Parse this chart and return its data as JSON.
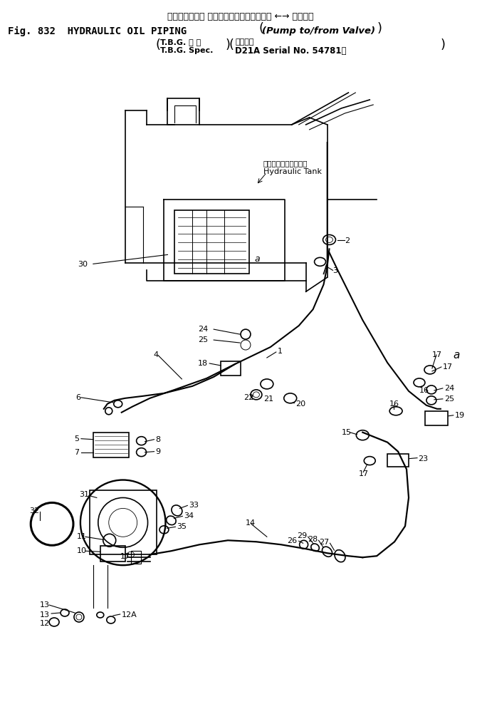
{
  "bg_color": "#ffffff",
  "line_color": "#000000",
  "fig_width": 6.77,
  "fig_height": 10.03,
  "dpi": 100,
  "title_jp": "ハイドロリック オイルパイピング（ポンプ ←→ バルブ）",
  "title_en_left": "Fig. 832  HYDRAULIC OIL PIPING",
  "title_en_right": "(Pump to/from Valve)",
  "sub_jp_left": "T.B.G. 仕 様",
  "sub_en_left": "T.B.G. Spec.",
  "sub_jp_right": "適用号機",
  "sub_en_right": "D21A Serial No. 54781～",
  "hydraulic_tank_jp": "ハイドロリックタンク",
  "hydraulic_tank_en": "Hydraulic Tank"
}
